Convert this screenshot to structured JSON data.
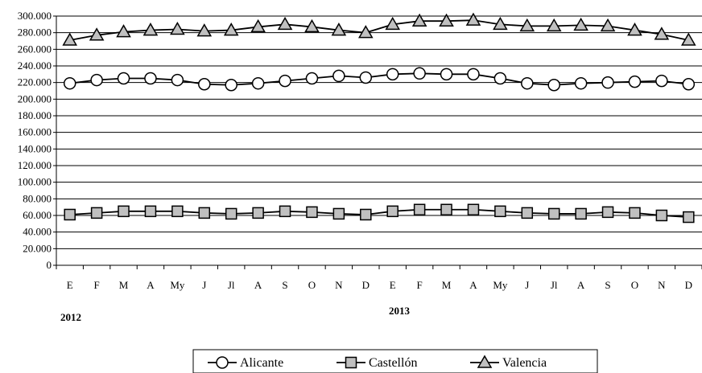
{
  "chart_data": {
    "type": "line",
    "categories": [
      "E",
      "F",
      "M",
      "A",
      "My",
      "J",
      "Jl",
      "A",
      "S",
      "O",
      "N",
      "D",
      "E",
      "F",
      "M",
      "A",
      "My",
      "J",
      "Jl",
      "A",
      "S",
      "O",
      "N",
      "D"
    ],
    "year_labels": [
      "2012",
      "2013"
    ],
    "y_ticks": [
      "0",
      "20.000",
      "40.000",
      "60.000",
      "80.000",
      "100.000",
      "120.000",
      "140.000",
      "160.000",
      "180.000",
      "200.000",
      "220.000",
      "240.000",
      "260.000",
      "280.000",
      "300.000"
    ],
    "ylim": [
      0,
      300000
    ],
    "grid": true,
    "legend_position": "bottom",
    "series": [
      {
        "name": "Alicante",
        "marker": "circle",
        "color": "#ffffff",
        "values": [
          219000,
          223000,
          225000,
          225000,
          223000,
          218000,
          217000,
          219000,
          222000,
          225000,
          228000,
          226000,
          230000,
          231000,
          230000,
          230000,
          225000,
          219000,
          217000,
          219000,
          220000,
          221000,
          222000,
          218000
        ]
      },
      {
        "name": "Castellón",
        "marker": "square",
        "color": "#c0c0c0",
        "values": [
          61000,
          63000,
          65000,
          65000,
          65000,
          63000,
          62000,
          63000,
          65000,
          64000,
          62000,
          61000,
          65000,
          67000,
          67000,
          67000,
          65000,
          63000,
          62000,
          62000,
          64000,
          63000,
          60000,
          58000
        ]
      },
      {
        "name": "Valencia",
        "marker": "triangle",
        "color": "#c0c0c0",
        "values": [
          271000,
          277000,
          281000,
          283000,
          284000,
          282000,
          283000,
          287000,
          290000,
          287000,
          283000,
          280000,
          290000,
          294000,
          294000,
          295000,
          290000,
          288000,
          288000,
          289000,
          288000,
          283000,
          278000,
          271000
        ]
      }
    ]
  }
}
